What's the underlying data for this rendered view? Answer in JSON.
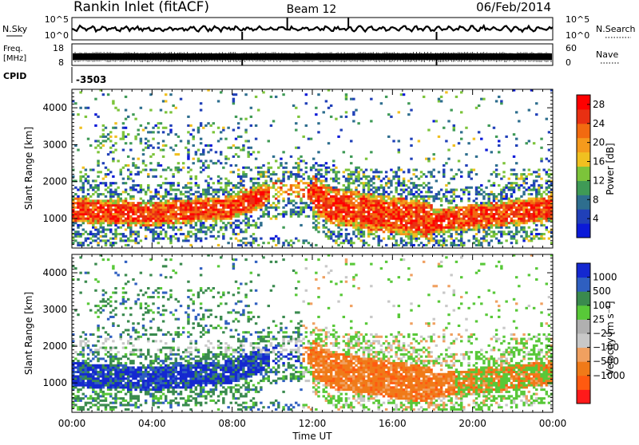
{
  "header": {
    "station": "Rankin Inlet (fitACF)",
    "beam": "Beam 12",
    "date": "06/Feb/2014"
  },
  "sky_panel": {
    "left_label": "N.Sky",
    "right_label": "N.Search",
    "left_ticks": [
      "10^5",
      "10^0"
    ],
    "right_ticks": [
      "10^5",
      "10^0"
    ]
  },
  "freq_panel": {
    "left_label_1": "Freq.",
    "left_label_2": "[MHz]",
    "right_label": "Nave",
    "left_ticks": [
      "18",
      "8"
    ],
    "right_ticks": [
      "60",
      "0"
    ]
  },
  "cpid": {
    "label": "CPID",
    "value": "-3503"
  },
  "colors": {
    "power": [
      "#0b1ad8",
      "#2040b8",
      "#2e6e8e",
      "#3f9a56",
      "#7cc43a",
      "#f0c020",
      "#f59a1c",
      "#f26a10",
      "#e83012",
      "#ff0000"
    ],
    "velocity": [
      "#ff1a1a",
      "#ff5a10",
      "#f07a18",
      "#f0a060",
      "#c8c8c8",
      "#b0b0b0",
      "#58c838",
      "#3a8a4e",
      "#2f5fc0",
      "#1428d0"
    ]
  },
  "chart_data": [
    {
      "type": "heatmap",
      "name": "power",
      "ylabel": "Slant Range [km]",
      "x_ticks": [
        "00:00",
        "04:00",
        "08:00",
        "12:00",
        "16:00",
        "20:00",
        "00:00"
      ],
      "y_ticks": [
        1000,
        2000,
        3000,
        4000
      ],
      "ylim": [
        200,
        4500
      ],
      "xlim_hours": [
        0,
        24
      ],
      "colorbar_label": "Power [dB]",
      "colorbar_ticks": [
        4,
        8,
        12,
        16,
        20,
        24,
        28
      ],
      "colorbar_range": [
        0,
        30
      ]
    },
    {
      "type": "heatmap",
      "name": "velocity",
      "ylabel": "Slant Range [km]",
      "xlabel": "Time UT",
      "x_ticks": [
        "00:00",
        "04:00",
        "08:00",
        "12:00",
        "16:00",
        "20:00",
        "00:00"
      ],
      "y_ticks": [
        1000,
        2000,
        3000,
        4000
      ],
      "ylim": [
        200,
        4500
      ],
      "xlim_hours": [
        0,
        24
      ],
      "colorbar_label": "Velocity [m s⁻¹]",
      "colorbar_ticks": [
        "1000",
        "500",
        "100",
        "25",
        "−25",
        "−100",
        "−500",
        "−1000"
      ]
    }
  ]
}
